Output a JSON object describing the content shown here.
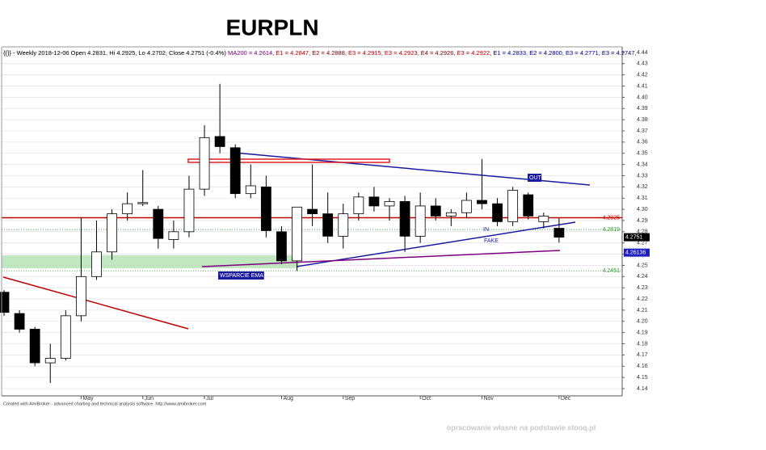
{
  "chart_data": {
    "type": "candlestick",
    "title": "EURPLN",
    "header": [
      {
        "text": "{{}} - Weekly 2018-12-06 Open 4.2831, Hi 4.2925, Lo 4.2702, Close 4.2751 (-0.4%) ",
        "color": "#000000"
      },
      {
        "text": "MA200 = 4.2614, ",
        "color": "#800080"
      },
      {
        "text": "E1 = 4.2847, ",
        "color": "#c00000"
      },
      {
        "text": "E2 = 4.2888, ",
        "color": "#800000"
      },
      {
        "text": "E3 = 4.2915, ",
        "color": "#c00000"
      },
      {
        "text": "E3 = 4.2923, ",
        "color": "#c00000"
      },
      {
        "text": "E4 = 4.2926, ",
        "color": "#800000"
      },
      {
        "text": "E3 = 4.2922, ",
        "color": "#c00000"
      },
      {
        "text": "E1 = 4.2833, ",
        "color": "#0000a0"
      },
      {
        "text": "E2 = 4.2800, ",
        "color": "#000080"
      },
      {
        "text": "E3 = 4.2771, ",
        "color": "#0000a0"
      },
      {
        "text": "E3 = 4.2747,",
        "color": "#000080"
      }
    ],
    "categories": [
      null,
      null,
      null,
      null,
      null,
      "May",
      null,
      null,
      null,
      "Jun",
      null,
      null,
      null,
      "Jul",
      null,
      null,
      null,
      null,
      "Aug",
      null,
      null,
      null,
      "Sep",
      null,
      null,
      null,
      null,
      "Oct",
      null,
      null,
      null,
      "Nov",
      null,
      null,
      null,
      null,
      "Dec"
    ],
    "open": [
      4.226,
      4.207,
      4.193,
      4.163,
      4.167,
      4.205,
      4.24,
      4.262,
      4.296,
      4.305,
      4.3,
      4.273,
      4.28,
      4.318,
      4.365,
      4.355,
      4.314,
      4.32,
      4.28,
      4.254,
      4.3,
      4.296,
      4.276,
      4.296,
      4.311,
      4.303,
      4.307,
      4.276,
      4.303,
      4.294,
      4.297,
      4.308,
      4.305,
      4.289,
      4.313,
      4.289,
      4.2831
    ],
    "high": [
      4.228,
      4.21,
      4.195,
      4.18,
      4.21,
      4.293,
      4.29,
      4.3,
      4.315,
      4.335,
      4.303,
      4.29,
      4.33,
      4.375,
      4.412,
      4.358,
      4.34,
      4.33,
      4.285,
      4.302,
      4.34,
      4.315,
      4.305,
      4.315,
      4.32,
      4.31,
      4.312,
      4.315,
      4.31,
      4.3,
      4.315,
      4.345,
      4.31,
      4.32,
      4.315,
      4.297,
      4.2925
    ],
    "low": [
      4.205,
      4.19,
      4.16,
      4.145,
      4.165,
      4.2,
      4.237,
      4.255,
      4.29,
      4.303,
      4.265,
      4.265,
      4.275,
      4.312,
      4.35,
      4.31,
      4.31,
      4.275,
      4.251,
      4.245,
      4.285,
      4.27,
      4.265,
      4.29,
      4.298,
      4.29,
      4.262,
      4.27,
      4.29,
      4.285,
      4.292,
      4.3,
      4.285,
      4.285,
      4.291,
      4.283,
      4.2702
    ],
    "close": [
      4.208,
      4.193,
      4.163,
      4.167,
      4.205,
      4.24,
      4.262,
      4.296,
      4.305,
      4.306,
      4.274,
      4.28,
      4.318,
      4.364,
      4.356,
      4.314,
      4.321,
      4.281,
      4.254,
      4.302,
      4.296,
      4.276,
      4.296,
      4.311,
      4.303,
      4.307,
      4.276,
      4.303,
      4.294,
      4.297,
      4.308,
      4.305,
      4.289,
      4.317,
      4.294,
      4.294,
      4.2751
    ],
    "up_color": "#ffffff",
    "down_color": "#000000",
    "ylim": [
      4.1335,
      4.445
    ],
    "yticks": [
      4.14,
      4.15,
      4.16,
      4.17,
      4.18,
      4.19,
      {
        "value": 4.2,
        "label": "4.20"
      },
      4.21,
      4.22,
      4.23,
      4.24,
      4.25,
      4.26,
      4.27,
      4.28,
      4.29,
      {
        "value": 4.3,
        "label": "4.30"
      },
      4.31,
      4.32,
      4.33,
      4.34,
      4.35,
      4.36,
      4.37,
      4.38,
      4.39,
      {
        "value": 4.4,
        "label": "4.40"
      },
      4.41,
      4.42,
      4.43,
      4.44
    ],
    "grid": true,
    "levels": [
      {
        "value": 4.2925,
        "color": "#c00000",
        "line": "solid"
      },
      {
        "value": 4.2819,
        "color": "#2e9e2e",
        "line": "dotted"
      },
      {
        "value": 4.2451,
        "color": "#2e9e2e",
        "line": "dotted"
      },
      {
        "value": 4.2751,
        "color": "#000000",
        "line": "box"
      },
      {
        "value": 4.26136,
        "color": "#2020c0",
        "line": "box"
      }
    ],
    "annotations": [
      "OUT",
      "IN",
      "FAKE",
      "WSPARCIE EMA"
    ],
    "footer": "Created with AmiBroker - advanced charting and technical analysis software. http://www.amibroker.com",
    "watermark": "opracowanie własne na podstawie stooq.pl"
  }
}
